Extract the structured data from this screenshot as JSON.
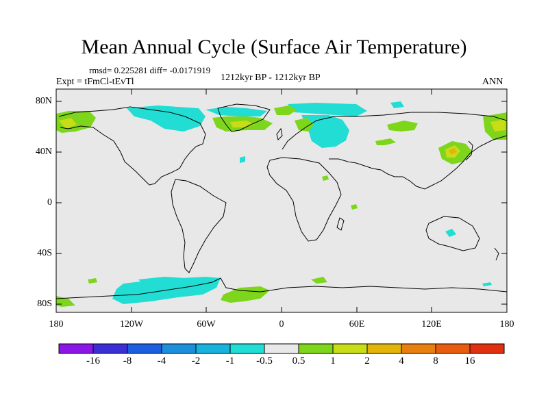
{
  "title": "Mean Annual Cycle (Surface Air Temperature)",
  "stats": "rmsd= 0.225281 diff= -0.0171919",
  "experiment": "Expt = tFmCl-tEvTl",
  "period": "1212kyr BP - 1212kyr BP",
  "season": "ANN",
  "lat_ticks": [
    "80N",
    "40N",
    "0",
    "40S",
    "80S"
  ],
  "lon_ticks": [
    "180",
    "120W",
    "60W",
    "0",
    "60E",
    "120E",
    "180"
  ],
  "colorbar": {
    "labels": [
      "-16",
      "-8",
      "-4",
      "-2",
      "-1",
      "-0.5",
      "0.5",
      "1",
      "2",
      "4",
      "8",
      "16"
    ],
    "colors": [
      "#8b16e6",
      "#3a2fd4",
      "#1d5ee0",
      "#1c8fdc",
      "#17b3dc",
      "#22ddd3",
      "#e8e8e8",
      "#7ed61c",
      "#c8dc18",
      "#e2b40c",
      "#e88010",
      "#e85c10",
      "#e03010"
    ]
  },
  "colors": {
    "background": "#e8e8e8",
    "cool": "#22ddd3",
    "warm": "#7ed61c",
    "warmer": "#c8dc18",
    "hot": "#e2b40c"
  }
}
